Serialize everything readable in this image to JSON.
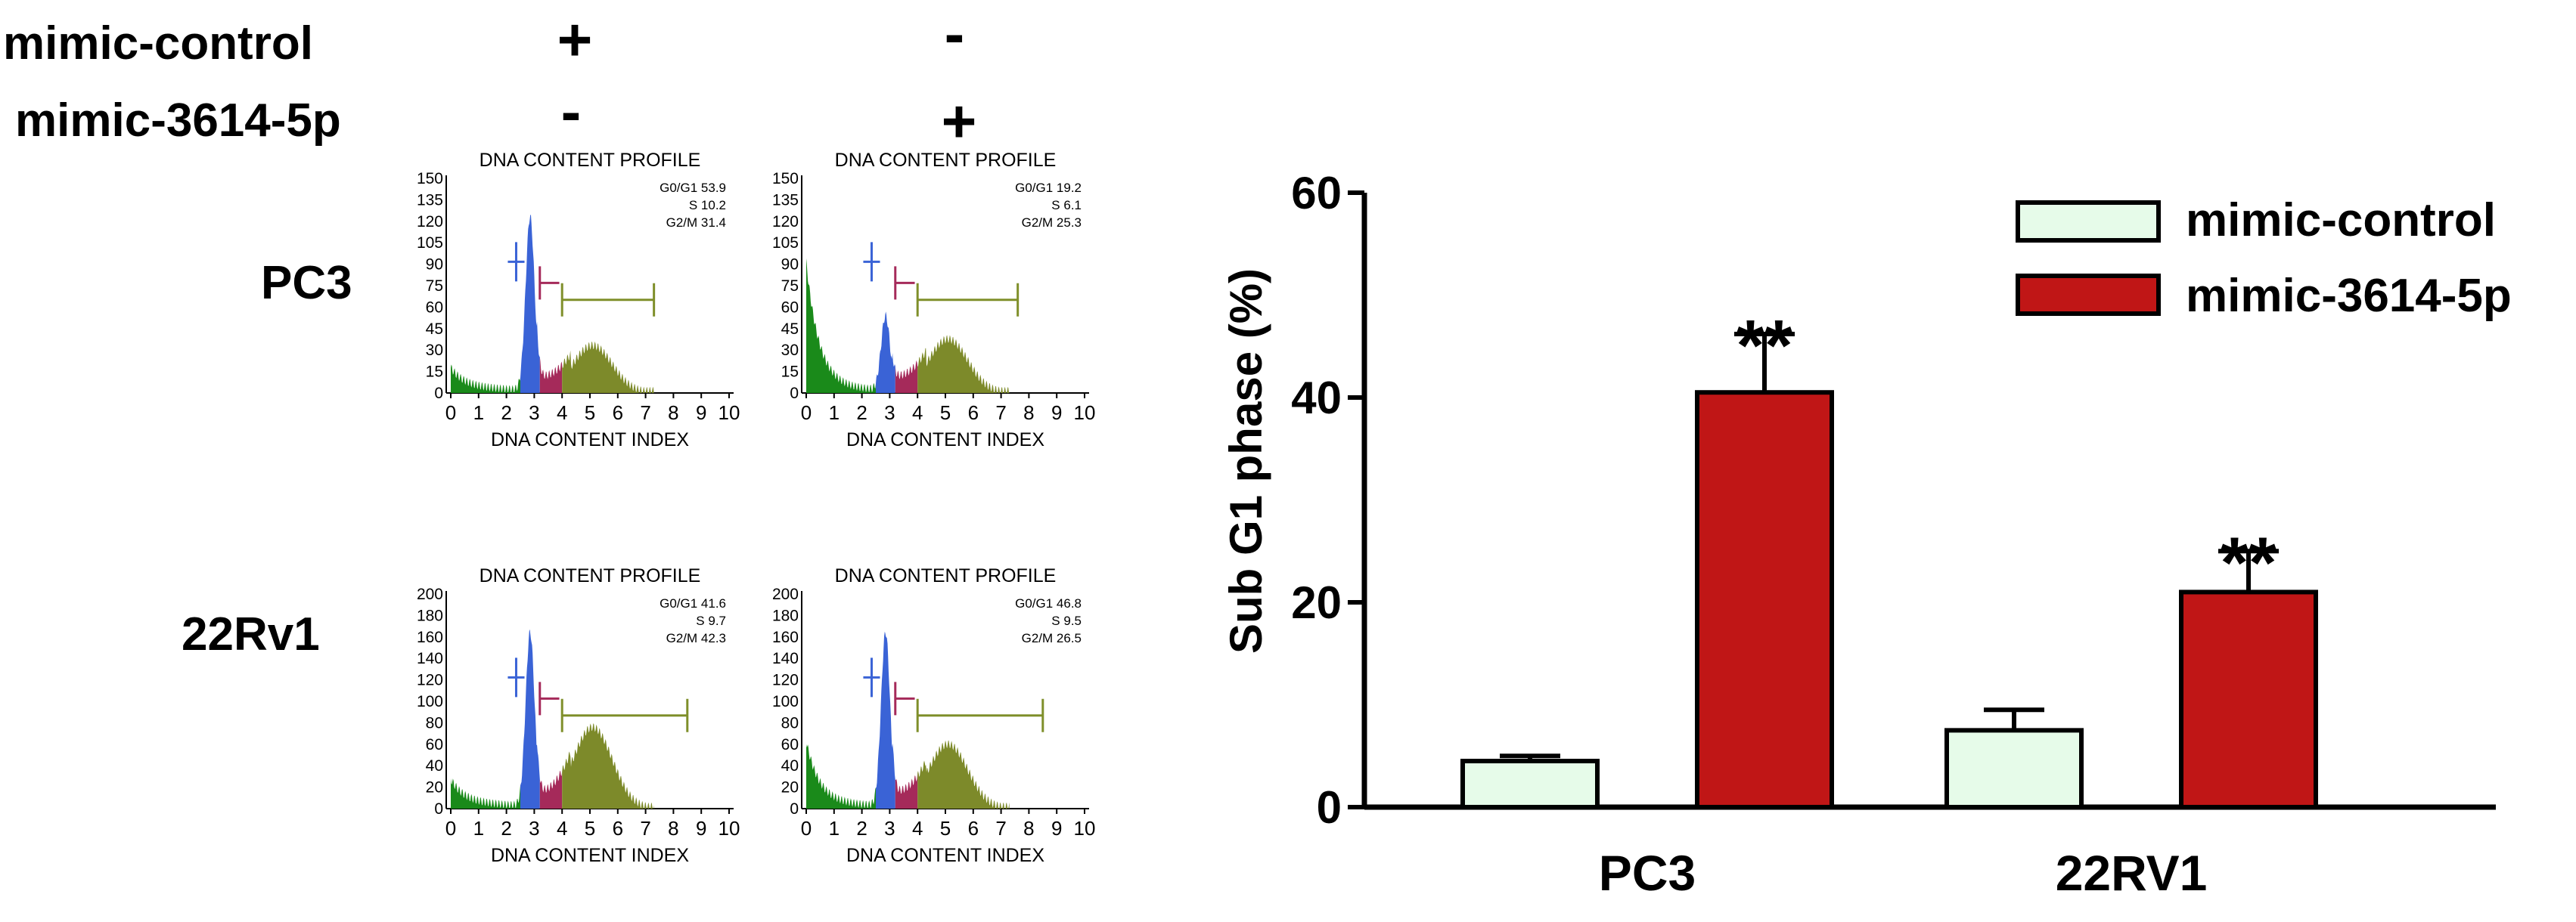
{
  "conditions": {
    "rows": [
      {
        "label": "mimic-control",
        "signs": [
          "+",
          "-"
        ]
      },
      {
        "label": "mimic-3614-5p",
        "signs": [
          "-",
          "+"
        ]
      }
    ]
  },
  "colors": {
    "control_fill": "#e6fbe9",
    "mimic_fill": "#c01616",
    "subg1_green": "#1a8a1a",
    "g0g1_blue": "#3a63d6",
    "s_magenta": "#a52a5a",
    "g2m_olive": "#7d8a2a",
    "marker_line": "#7f8f2a"
  },
  "histograms": {
    "profile_title": "DNA CONTENT PROFILE",
    "index_label": "DNA CONTENT INDEX",
    "x_ticks": [
      "0",
      "1",
      "2",
      "3",
      "4",
      "5",
      "6",
      "7",
      "8",
      "9",
      "10"
    ],
    "rows": [
      {
        "row_label": "PC3",
        "y_ticks": [
          "150",
          "135",
          "120",
          "105",
          "90",
          "75",
          "60",
          "45",
          "30",
          "15",
          "0"
        ],
        "panels": [
          {
            "stats": [
              "G0/G1 53.9",
              "S 10.2",
              "G2/M 31.4"
            ],
            "subg1": 0.08,
            "g1_peak": 0.82,
            "g2m": 0.22,
            "marker_end": 7.3
          },
          {
            "stats": [
              "G0/G1 19.2",
              "S 6.1",
              "G2/M 25.3"
            ],
            "subg1": 0.58,
            "g1_peak": 0.35,
            "g2m": 0.25,
            "marker_end": 7.6
          }
        ]
      },
      {
        "row_label": "22Rv1",
        "y_ticks": [
          "200",
          "180",
          "160",
          "140",
          "120",
          "100",
          "80",
          "60",
          "40",
          "20",
          "0"
        ],
        "panels": [
          {
            "stats": [
              "G0/G1 41.6",
              "S 9.7",
              "G2/M 42.3"
            ],
            "subg1": 0.1,
            "g1_peak": 0.82,
            "g2m": 0.38,
            "marker_end": 8.5
          },
          {
            "stats": [
              "G0/G1 46.8",
              "S 9.5",
              "G2/M 26.5"
            ],
            "subg1": 0.28,
            "g1_peak": 0.82,
            "g2m": 0.3,
            "marker_end": 8.5
          }
        ]
      }
    ]
  },
  "chart_data": {
    "type": "bar",
    "title": "",
    "xlabel": "",
    "ylabel": "Sub G1 phase (%)",
    "ylim": [
      0,
      60
    ],
    "yticks": [
      0,
      20,
      40,
      60
    ],
    "categories": [
      "PC3",
      "22RV1"
    ],
    "series": [
      {
        "name": "mimic-control",
        "values": [
          4.5,
          7.5
        ],
        "errors": [
          0.5,
          2.0
        ]
      },
      {
        "name": "mimic-3614-5p",
        "values": [
          40.5,
          21.0
        ],
        "errors": [
          5.7,
          4.0
        ]
      }
    ],
    "annotations": [
      {
        "category": "PC3",
        "series": "mimic-3614-5p",
        "text": "**"
      },
      {
        "category": "22RV1",
        "series": "mimic-3614-5p",
        "text": "**"
      }
    ],
    "legend_position": "top-right"
  }
}
